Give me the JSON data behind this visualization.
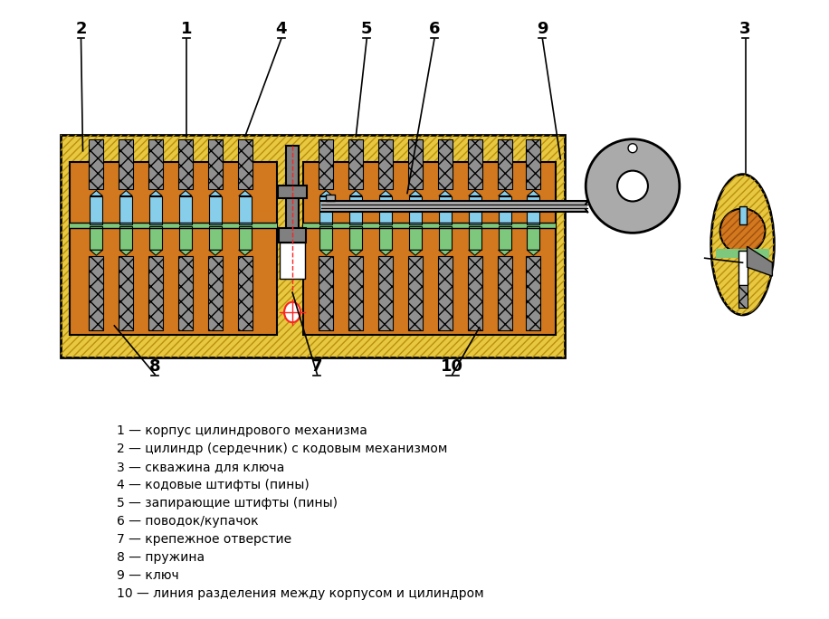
{
  "bg_color": "#ffffff",
  "legend_lines": [
    "1 — корпус цилиндрового механизма",
    "2 — цилиндр (сердечник) с кодовым механизмом",
    "3 — скважина для ключа",
    "4 — кодовые штифты (пины)",
    "5 — запирающие штифты (пины)",
    "6 — поводок/купачок",
    "7 — крепежное отверстие",
    "8 — пружина",
    "9 — ключ",
    "10 — линия разделения между корпусом и цилиндром"
  ],
  "color_gold": "#E8C840",
  "color_gold_dark": "#C8A820",
  "color_orange": "#D2781E",
  "color_blue": "#87CEEB",
  "color_green": "#7DC87D",
  "color_gray": "#AAAAAA",
  "color_gray_dark": "#808080",
  "color_red": "#FF2222",
  "color_black": "#000000",
  "color_white": "#ffffff"
}
